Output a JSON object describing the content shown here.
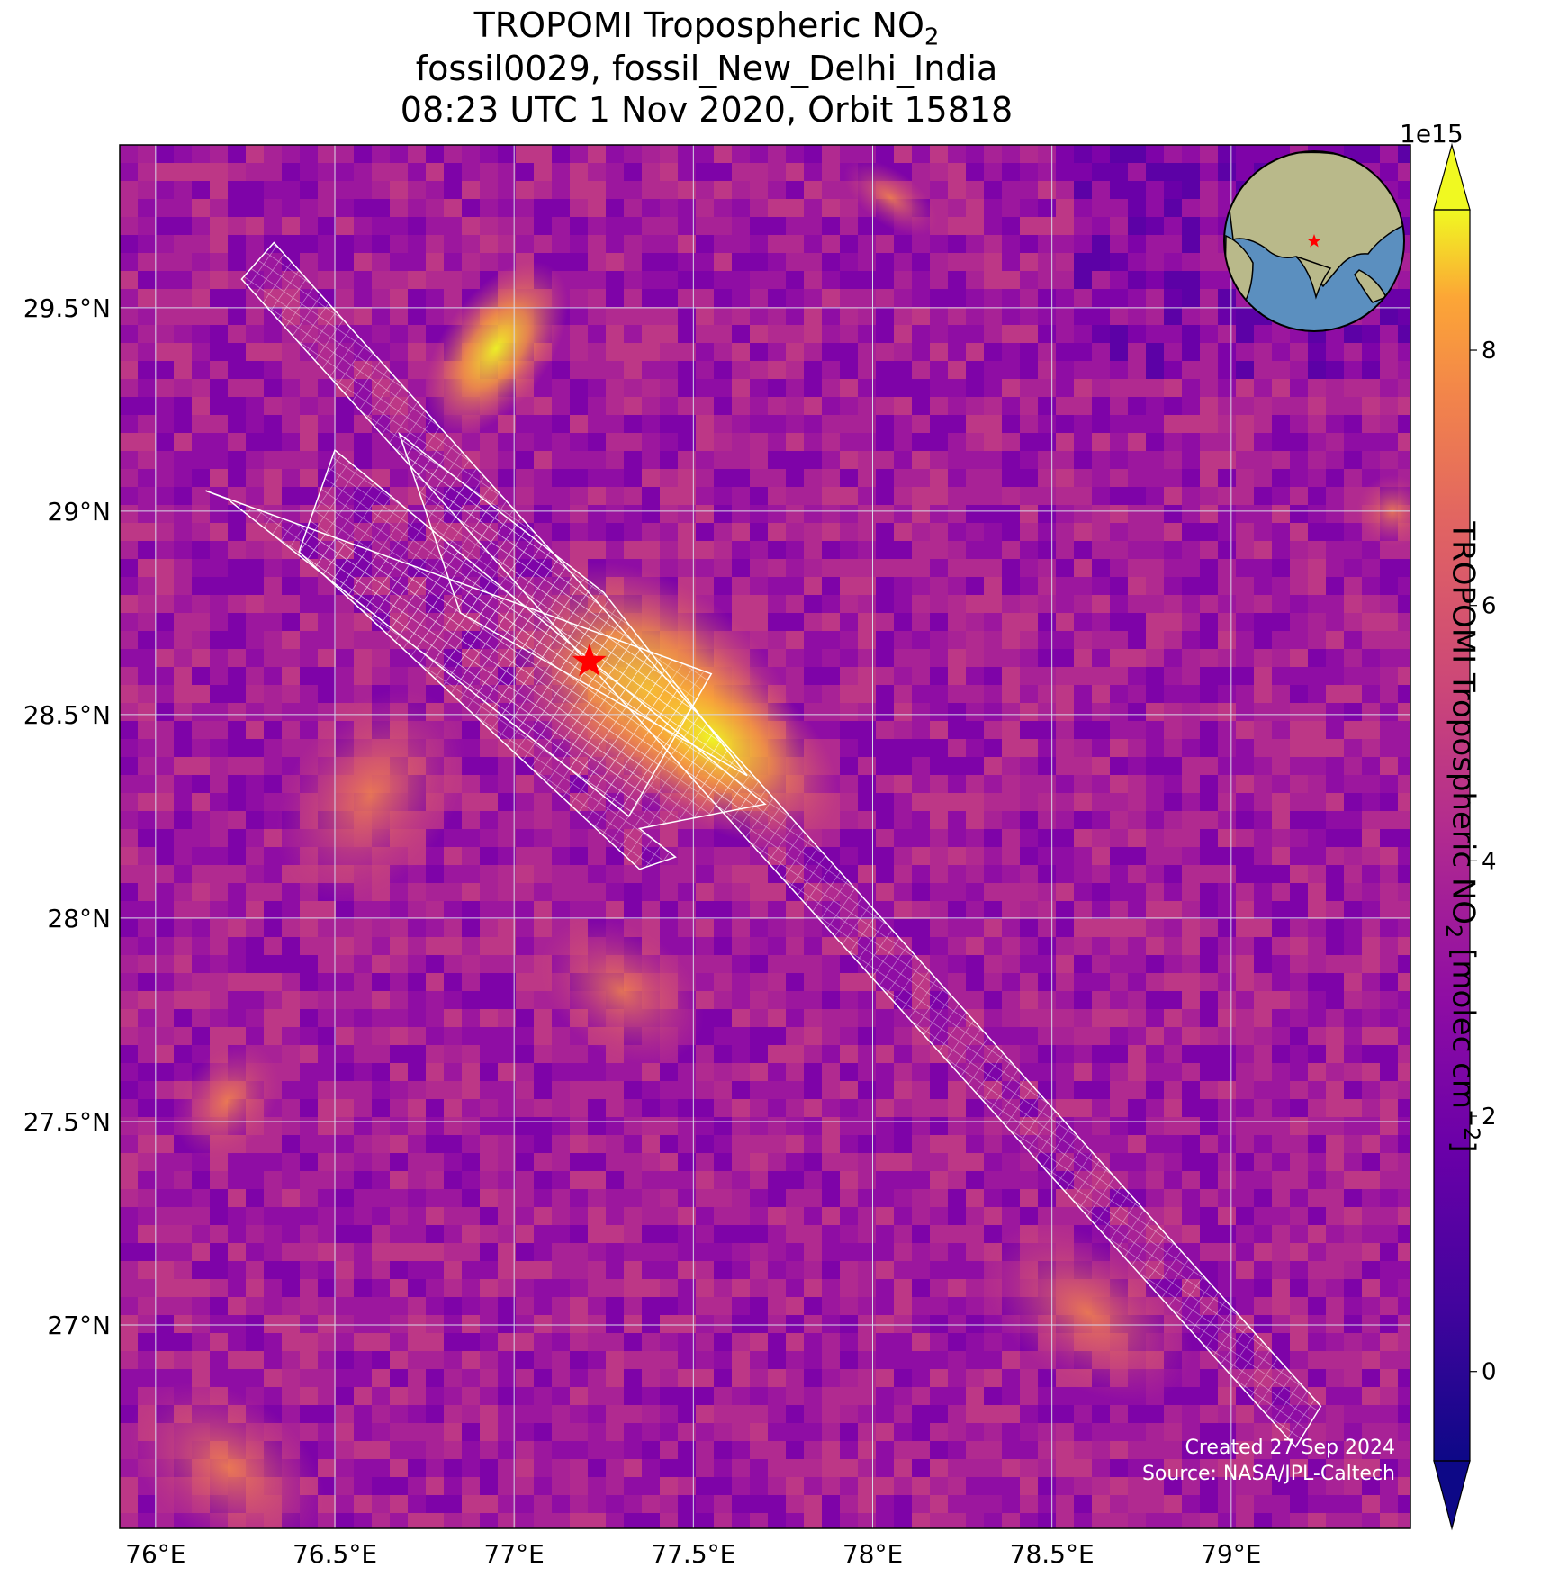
{
  "title": {
    "line1_prefix": "TROPOMI Tropospheric NO",
    "line1_sub": "2",
    "line2": "fossil0029, fossil_New_Delhi_India",
    "line3": "08:23 UTC 1 Nov 2020, Orbit 15818"
  },
  "map": {
    "lon_range": [
      75.9,
      79.5
    ],
    "lat_range": [
      26.5,
      29.9
    ],
    "lon_ticks": [
      "76°E",
      "76.5°E",
      "77°E",
      "77.5°E",
      "78°E",
      "78.5°E",
      "79°E"
    ],
    "lon_tick_values": [
      76.0,
      76.5,
      77.0,
      77.5,
      78.0,
      78.5,
      79.0
    ],
    "lat_ticks": [
      "29.5°N",
      "29°N",
      "28.5°N",
      "28°N",
      "27.5°N",
      "27°N"
    ],
    "lat_tick_values": [
      29.5,
      29.0,
      28.5,
      28.0,
      27.5,
      27.0
    ],
    "grid": true,
    "site_marker": {
      "lon": 77.21,
      "lat": 28.63,
      "color": "#ff0000",
      "symbol": "star"
    },
    "colormap": "plasma",
    "overlay_color": "#ffffff"
  },
  "colorbar": {
    "label_prefix": "TROPOMI Tropospheric NO",
    "label_sub": "2",
    "label_suffix": " [molec cm",
    "label_sup": "−2",
    "label_end": "]",
    "exponent": "1e15",
    "ticks": [
      "0",
      "2",
      "4",
      "6",
      "8"
    ],
    "tick_values": [
      0,
      2,
      4,
      6,
      8
    ],
    "range": [
      -0.7,
      9.1
    ],
    "extend": "both"
  },
  "inset_globe": {
    "marker_color": "#ff0000",
    "ocean_color": "#5b8fbf",
    "land_color": "#b9b98a"
  },
  "credits": {
    "created": "Created 27 Sep 2024",
    "source": "Source: NASA/JPL-Caltech"
  }
}
